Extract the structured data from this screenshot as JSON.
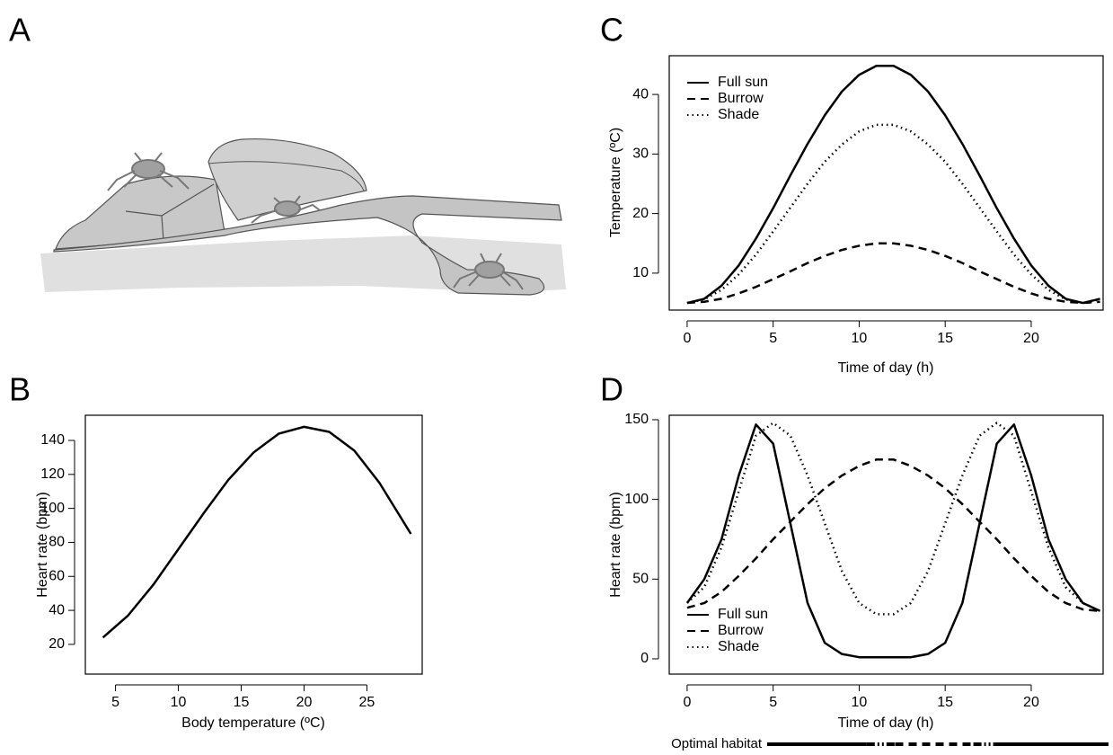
{
  "illustration": {
    "panel": "A"
  },
  "chart_data": [
    {
      "type": "line",
      "panel": "B",
      "xlabel": "Body temperature (ºC)",
      "ylabel": "Heart rate (bpm)",
      "x": [
        4,
        6,
        8,
        10,
        12,
        14,
        16,
        18,
        20,
        22,
        24,
        26,
        28.5
      ],
      "series": [
        {
          "name": null,
          "color": "#000000",
          "linestyle": "solid",
          "values": [
            24,
            37,
            55,
            76,
            97,
            117,
            133,
            144,
            148,
            145,
            134,
            115,
            85
          ]
        }
      ],
      "xlim": [
        2.6,
        29.4
      ],
      "ylim": [
        2.5,
        154.8
      ],
      "xticks": [
        5,
        10,
        15,
        20,
        25
      ],
      "yticks": [
        20,
        40,
        60,
        80,
        100,
        120,
        140
      ]
    },
    {
      "type": "line",
      "panel": "C",
      "xlabel": "Time of day (h)",
      "ylabel": "Temperature (ºC)",
      "legend": "top-left",
      "x": [
        0,
        1,
        2,
        3,
        4,
        5,
        6,
        7,
        8,
        9,
        10,
        11,
        12,
        13,
        14,
        15,
        16,
        17,
        18,
        19,
        20,
        21,
        22,
        23,
        24
      ],
      "series": [
        {
          "name": "Full sun",
          "color": "#000000",
          "linestyle": "solid",
          "values": [
            5,
            5.7,
            7.9,
            11.3,
            15.8,
            20.9,
            26.4,
            31.7,
            36.5,
            40.5,
            43.3,
            44.8,
            44.8,
            43.3,
            40.5,
            36.5,
            31.7,
            26.4,
            20.9,
            15.8,
            11.3,
            7.9,
            5.7,
            5,
            5.7
          ]
        },
        {
          "name": "Burrow",
          "color": "#000000",
          "linestyle": "dashed",
          "values": [
            5,
            5.2,
            5.7,
            6.6,
            7.7,
            9,
            10.3,
            11.7,
            12.9,
            13.9,
            14.6,
            15,
            15,
            14.6,
            13.9,
            12.9,
            11.7,
            10.3,
            9,
            7.7,
            6.6,
            5.7,
            5.2,
            5,
            5.2
          ]
        },
        {
          "name": "Shade",
          "color": "#000000",
          "linestyle": "dotted",
          "values": [
            5,
            5.6,
            7.2,
            9.8,
            13.1,
            17,
            21,
            25,
            28.7,
            31.6,
            33.8,
            34.9,
            34.9,
            33.8,
            31.6,
            28.7,
            25,
            21,
            17,
            13.1,
            9.8,
            7.2,
            5.6,
            5,
            5.6
          ]
        }
      ],
      "xlim": [
        -1.04,
        24.18
      ],
      "ylim": [
        3.8,
        46.5
      ],
      "xticks": [
        0,
        5,
        10,
        15,
        20
      ],
      "yticks": [
        10,
        20,
        30,
        40
      ]
    },
    {
      "type": "line",
      "panel": "D",
      "xlabel": "Time of day (h)",
      "ylabel": "Heart rate (bpm)",
      "legend": "bottom-left",
      "x": [
        0,
        1,
        2,
        3,
        4,
        5,
        6,
        7,
        8,
        9,
        10,
        11,
        12,
        13,
        14,
        15,
        16,
        17,
        18,
        19,
        20,
        21,
        22,
        23,
        24
      ],
      "series": [
        {
          "name": "Full sun",
          "color": "#000000",
          "linestyle": "solid",
          "values": [
            35,
            50,
            75,
            115,
            147,
            135,
            85,
            35,
            10,
            3,
            1,
            1,
            1,
            1,
            3,
            10,
            35,
            85,
            135,
            147,
            115,
            75,
            50,
            35,
            30
          ]
        },
        {
          "name": "Burrow",
          "color": "#000000",
          "linestyle": "dashed",
          "values": [
            32,
            35,
            42,
            52,
            63,
            75,
            86,
            97,
            107,
            115,
            121,
            125,
            125,
            121,
            115,
            107,
            97,
            86,
            75,
            63,
            52,
            42,
            35,
            31,
            30
          ]
        },
        {
          "name": "Shade",
          "color": "#000000",
          "linestyle": "dotted",
          "values": [
            35,
            45,
            70,
            105,
            140,
            148,
            140,
            115,
            85,
            55,
            35,
            28,
            28,
            35,
            55,
            85,
            115,
            140,
            148,
            140,
            105,
            70,
            45,
            35,
            30
          ]
        }
      ],
      "xlim": [
        -1.04,
        24.18
      ],
      "ylim": [
        -9.6,
        152.8
      ],
      "xticks": [
        0,
        5,
        10,
        15,
        20
      ],
      "yticks": [
        0,
        50,
        100,
        150
      ],
      "habitat": {
        "label": "Optimal habitat",
        "xlim": [
          0,
          24
        ],
        "segments": [
          {
            "start": 0,
            "end": 7,
            "linestyle": "solid"
          },
          {
            "start": 7,
            "end": 9,
            "linestyle": "dashdot"
          },
          {
            "start": 9,
            "end": 14.5,
            "linestyle": "dashed"
          },
          {
            "start": 14.5,
            "end": 16,
            "linestyle": "dashdot"
          },
          {
            "start": 16,
            "end": 24,
            "linestyle": "solid"
          }
        ]
      }
    }
  ]
}
